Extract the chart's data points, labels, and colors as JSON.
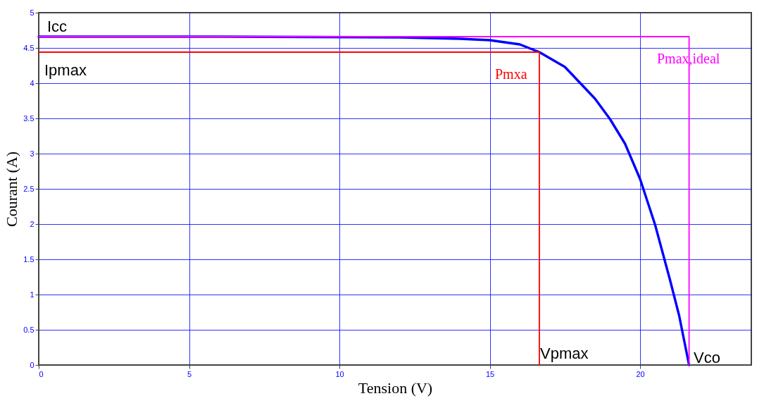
{
  "chart_data": {
    "type": "line",
    "xlabel": "Tension (V)",
    "ylabel": "Courant (A)",
    "xlim": [
      0,
      23.7
    ],
    "xticks": [
      0,
      5,
      10,
      15,
      20
    ],
    "ylim": [
      0,
      5
    ],
    "yticks": [
      0,
      0.5,
      1,
      1.5,
      2,
      2.5,
      3,
      3.5,
      4,
      4.5,
      5
    ],
    "grid": true,
    "marker": "none",
    "line_style": "solid",
    "series": [
      {
        "color": "#0000ff",
        "x": [
          0,
          6,
          12,
          14,
          15,
          16,
          16.65,
          17.5,
          18.5,
          19,
          19.5,
          20,
          20.5,
          21,
          21.3,
          21.63
        ],
        "values": [
          4.66,
          4.66,
          4.65,
          4.63,
          4.61,
          4.55,
          4.44,
          4.23,
          3.78,
          3.49,
          3.14,
          2.64,
          1.99,
          1.2,
          0.7,
          0
        ]
      },
      {
        "color": "#ff0000",
        "x": [
          0,
          16.65,
          16.65
        ],
        "values": [
          4.44,
          4.44,
          0
        ]
      },
      {
        "color": "#ff00ff",
        "x": [
          0,
          21.63,
          21.63
        ],
        "values": [
          4.66,
          4.66,
          0
        ]
      }
    ],
    "annotations": [
      "Icc",
      "Ipmax",
      "Pmxa",
      "Pmax,ideal",
      "Vpmax",
      "Vco"
    ]
  }
}
